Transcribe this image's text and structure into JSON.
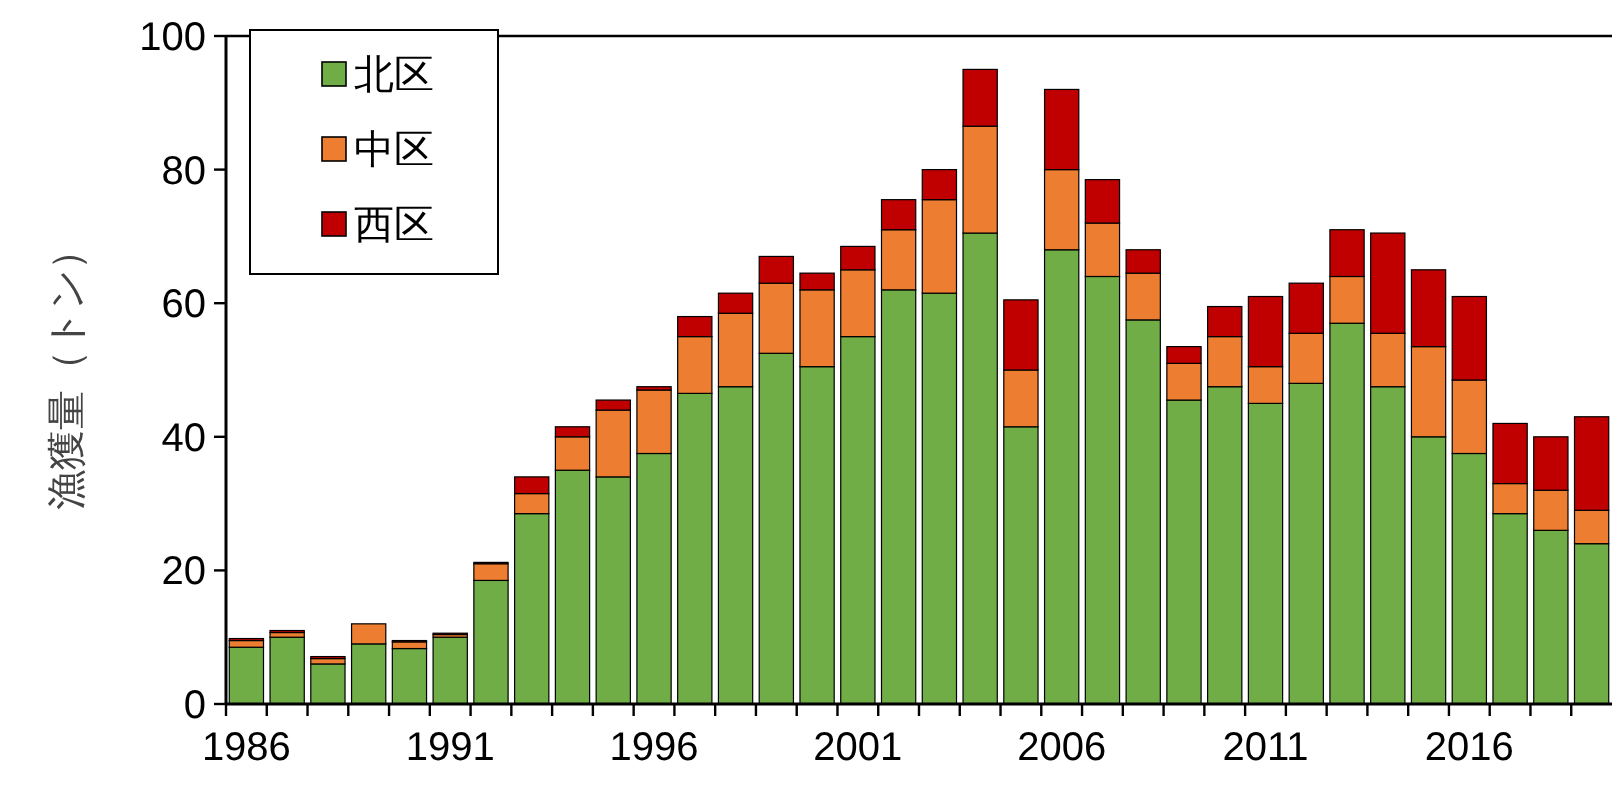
{
  "chart_data": {
    "type": "bar",
    "stacked": true,
    "ylabel": "漁獲量（トン）",
    "categories": [
      "1986",
      null,
      null,
      null,
      null,
      "1991",
      null,
      null,
      null,
      null,
      "1996",
      null,
      null,
      null,
      null,
      "2001",
      null,
      null,
      null,
      null,
      "2006",
      null,
      null,
      null,
      null,
      "2011",
      null,
      null,
      null,
      null,
      "2016",
      null,
      null,
      null
    ],
    "series": [
      {
        "name": "北区",
        "color": "#70ad47",
        "values": [
          8.5,
          10,
          6,
          9,
          8.3,
          10,
          18.5,
          28.5,
          35,
          34,
          37.5,
          46.5,
          47.5,
          52.5,
          50.5,
          55,
          62,
          61.5,
          70.5,
          41.5,
          68,
          64,
          57.5,
          45.5,
          47.5,
          45,
          48,
          57,
          47.5,
          40,
          37.5,
          28.5,
          26,
          24
        ]
      },
      {
        "name": "中区",
        "color": "#ed7d31",
        "values": [
          1,
          0.7,
          0.8,
          3,
          1,
          0.4,
          2.5,
          3,
          5,
          10,
          9.5,
          8.5,
          11,
          10.5,
          11.5,
          10,
          9,
          14,
          16,
          8.5,
          12,
          8,
          7,
          5.5,
          7.5,
          5.5,
          7.5,
          7,
          8,
          13.5,
          11,
          4.5,
          6,
          5
        ]
      },
      {
        "name": "西区",
        "color": "#c00000",
        "values": [
          0.3,
          0.3,
          0.3,
          0,
          0.2,
          0.2,
          0.2,
          2.5,
          1.5,
          1.5,
          0.5,
          3,
          3,
          4,
          2.5,
          3.5,
          4.5,
          4.5,
          8.5,
          10.5,
          12,
          6.5,
          3.5,
          2.5,
          4.5,
          10.5,
          7.5,
          7,
          15,
          11.5,
          12.5,
          9,
          8,
          14
        ]
      }
    ],
    "ylim": [
      0,
      100
    ],
    "yticks": [
      0,
      20,
      40,
      60,
      80,
      100
    ],
    "legend": "top left",
    "grid": false
  }
}
